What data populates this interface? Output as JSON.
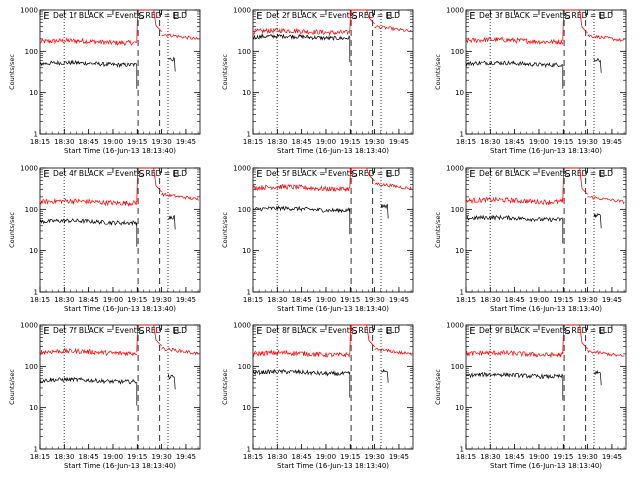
{
  "page": {
    "ylabel": "Counts/sec",
    "xlabel": "Start Time (16-Jun-13 18:13:40)",
    "x_ticks": [
      "18:15",
      "18:30",
      "18:45",
      "19:00",
      "19:15",
      "19:30",
      "19:45"
    ],
    "y_ticks": [
      "1",
      "10",
      "100",
      "1000"
    ],
    "marker_labels": [
      "E",
      "S",
      "E"
    ],
    "colors": {
      "events": "#000000",
      "lld": "#ff0000",
      "axes": "#000000",
      "background": "#ffffff"
    }
  },
  "chart_data": [
    {
      "type": "line",
      "title": "Det 1f BLACK = Events, RED = LLD",
      "xlabel": "Start Time (16-Jun-13 18:13:40)",
      "ylabel": "Counts/sec",
      "ylim": [
        1,
        1000
      ],
      "y_scale": "log",
      "series": [
        {
          "name": "Events",
          "color": "#000000",
          "level": 50,
          "after_level": 65
        },
        {
          "name": "LLD",
          "color": "#ff0000",
          "level": 170,
          "after_level": 260
        }
      ]
    },
    {
      "type": "line",
      "title": "Det 2f BLACK = Events, RED = LLD",
      "xlabel": "Start Time (16-Jun-13 18:13:40)",
      "ylabel": "Counts/sec",
      "ylim": [
        1,
        1000
      ],
      "y_scale": "log",
      "series": [
        {
          "name": "Events",
          "color": "#000000",
          "level": 220,
          "after_level": null
        },
        {
          "name": "LLD",
          "color": "#ff0000",
          "level": 300,
          "after_level": 400
        }
      ]
    },
    {
      "type": "line",
      "title": "Det 3f BLACK = Events, RED = LLD",
      "xlabel": "Start Time (16-Jun-13 18:13:40)",
      "ylabel": "Counts/sec",
      "ylim": [
        1,
        1000
      ],
      "y_scale": "log",
      "series": [
        {
          "name": "Events",
          "color": "#000000",
          "level": 50,
          "after_level": 60
        },
        {
          "name": "LLD",
          "color": "#ff0000",
          "level": 180,
          "after_level": 240
        }
      ]
    },
    {
      "type": "line",
      "title": "Det 4f BLACK = Events, RED = LLD",
      "xlabel": "Start Time (16-Jun-13 18:13:40)",
      "ylabel": "Counts/sec",
      "ylim": [
        1,
        1000
      ],
      "y_scale": "log",
      "series": [
        {
          "name": "Events",
          "color": "#000000",
          "level": 50,
          "after_level": 65
        },
        {
          "name": "LLD",
          "color": "#ff0000",
          "level": 150,
          "after_level": 230
        }
      ]
    },
    {
      "type": "line",
      "title": "Det 5f BLACK = Events, RED = LLD",
      "xlabel": "Start Time (16-Jun-13 18:13:40)",
      "ylabel": "Counts/sec",
      "ylim": [
        1,
        1000
      ],
      "y_scale": "log",
      "series": [
        {
          "name": "Events",
          "color": "#000000",
          "level": 100,
          "after_level": 120
        },
        {
          "name": "LLD",
          "color": "#ff0000",
          "level": 330,
          "after_level": 420
        }
      ]
    },
    {
      "type": "line",
      "title": "Det 6f BLACK = Events, RED = LLD",
      "xlabel": "Start Time (16-Jun-13 18:13:40)",
      "ylabel": "Counts/sec",
      "ylim": [
        1,
        1000
      ],
      "y_scale": "log",
      "series": [
        {
          "name": "Events",
          "color": "#000000",
          "level": 60,
          "after_level": 70
        },
        {
          "name": "LLD",
          "color": "#ff0000",
          "level": 160,
          "after_level": 200
        }
      ]
    },
    {
      "type": "line",
      "title": "Det 7f BLACK = Events, RED = LLD",
      "xlabel": "Start Time (16-Jun-13 18:13:40)",
      "ylabel": "Counts/sec",
      "ylim": [
        1,
        1000
      ],
      "y_scale": "log",
      "series": [
        {
          "name": "Events",
          "color": "#000000",
          "level": 45,
          "after_level": 55
        },
        {
          "name": "LLD",
          "color": "#ff0000",
          "level": 220,
          "after_level": 270
        }
      ]
    },
    {
      "type": "line",
      "title": "Det 8f BLACK = Events, RED = LLD",
      "xlabel": "Start Time (16-Jun-13 18:13:40)",
      "ylabel": "Counts/sec",
      "ylim": [
        1,
        1000
      ],
      "y_scale": "log",
      "series": [
        {
          "name": "Events",
          "color": "#000000",
          "level": 70,
          "after_level": 80
        },
        {
          "name": "LLD",
          "color": "#ff0000",
          "level": 200,
          "after_level": 260
        }
      ]
    },
    {
      "type": "line",
      "title": "Det 9f BLACK = Events, RED = LLD",
      "xlabel": "Start Time (16-Jun-13 18:13:40)",
      "ylabel": "Counts/sec",
      "ylim": [
        1,
        1000
      ],
      "y_scale": "log",
      "series": [
        {
          "name": "Events",
          "color": "#000000",
          "level": 60,
          "after_level": 70
        },
        {
          "name": "LLD",
          "color": "#ff0000",
          "level": 200,
          "after_level": 230
        }
      ]
    }
  ]
}
